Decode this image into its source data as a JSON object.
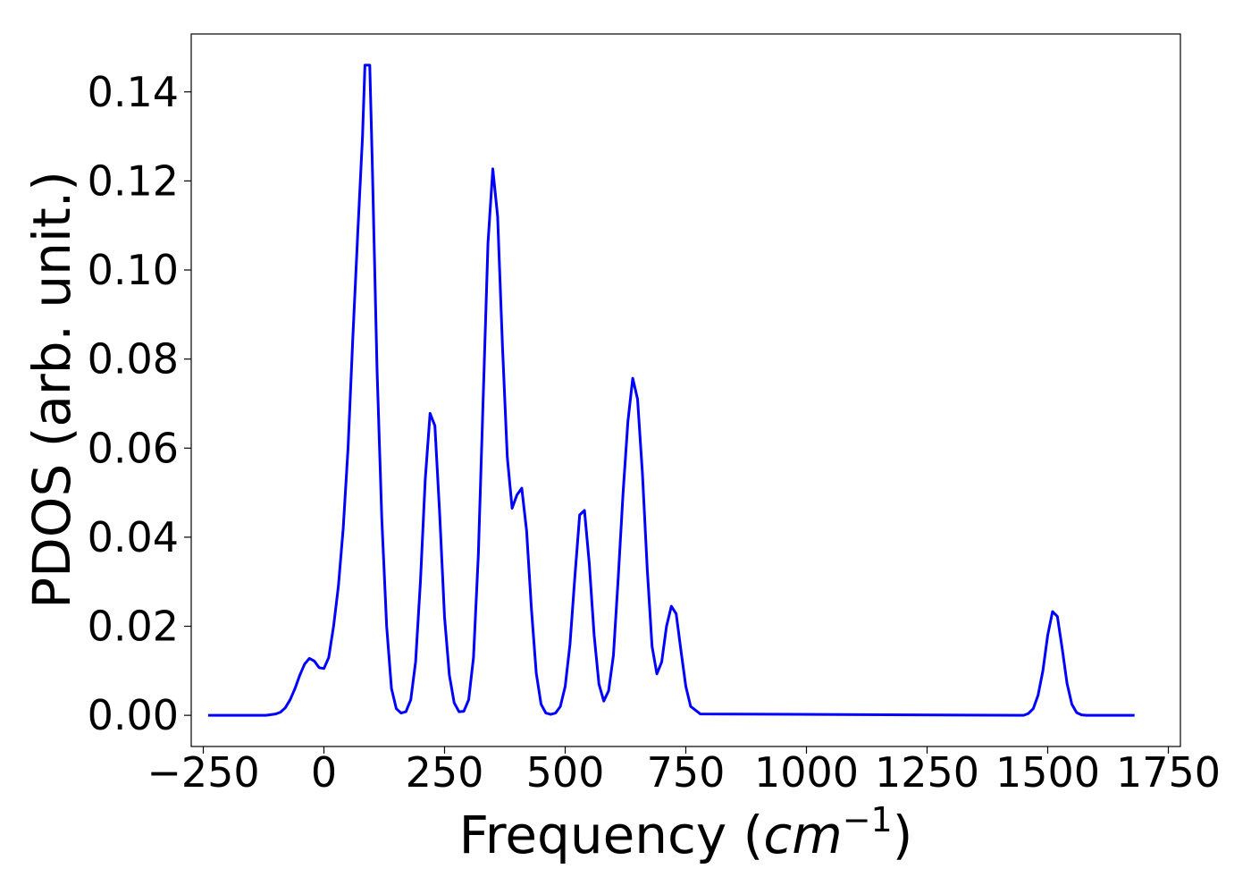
{
  "chart_data": {
    "type": "line",
    "title": "",
    "xlabel_main": "Frequency (",
    "xlabel_unit": "cm",
    "xlabel_sup": "−1",
    "xlabel_tail": ")",
    "ylabel": "PDOS (arb. unit.)",
    "xlim": [
      -275,
      1775
    ],
    "ylim": [
      -0.007,
      0.153
    ],
    "xticks": [
      -250,
      0,
      250,
      500,
      750,
      1000,
      1250,
      1500,
      1750
    ],
    "xtick_labels": [
      "−250",
      "0",
      "250",
      "500",
      "750",
      "1000",
      "1250",
      "1500",
      "1750"
    ],
    "yticks": [
      0.0,
      0.02,
      0.04,
      0.06,
      0.08,
      0.1,
      0.12,
      0.14
    ],
    "ytick_labels": [
      "0.00",
      "0.02",
      "0.04",
      "0.06",
      "0.08",
      "0.10",
      "0.12",
      "0.14"
    ],
    "grid": false,
    "series": [
      {
        "color": "#0000ff",
        "x": [
          -240,
          -120,
          -100,
          -90,
          -80,
          -70,
          -60,
          -50,
          -40,
          -30,
          -20,
          -10,
          0,
          10,
          20,
          30,
          40,
          50,
          60,
          70,
          80,
          85,
          90,
          95,
          100,
          110,
          120,
          130,
          140,
          150,
          160,
          170,
          180,
          190,
          200,
          210,
          220,
          230,
          240,
          250,
          260,
          270,
          280,
          290,
          300,
          310,
          320,
          330,
          340,
          350,
          360,
          370,
          380,
          390,
          400,
          410,
          420,
          430,
          440,
          450,
          460,
          470,
          480,
          490,
          500,
          510,
          520,
          530,
          540,
          550,
          560,
          570,
          580,
          590,
          600,
          610,
          620,
          630,
          640,
          650,
          660,
          670,
          680,
          690,
          700,
          710,
          720,
          730,
          740,
          750,
          760,
          780,
          1450,
          1460,
          1470,
          1480,
          1490,
          1500,
          1510,
          1520,
          1530,
          1540,
          1550,
          1560,
          1570,
          1580,
          1680
        ],
        "y": [
          0,
          0,
          0.0003,
          0.0007,
          0.0017,
          0.0035,
          0.006,
          0.009,
          0.0115,
          0.0128,
          0.0122,
          0.0107,
          0.0105,
          0.013,
          0.02,
          0.029,
          0.042,
          0.06,
          0.085,
          0.108,
          0.13,
          0.146,
          0.146,
          0.146,
          0.125,
          0.078,
          0.044,
          0.02,
          0.006,
          0.0015,
          0.0005,
          0.0008,
          0.0035,
          0.012,
          0.03,
          0.053,
          0.0678,
          0.065,
          0.045,
          0.022,
          0.009,
          0.0028,
          0.0008,
          0.0009,
          0.0035,
          0.013,
          0.036,
          0.071,
          0.106,
          0.1227,
          0.112,
          0.083,
          0.058,
          0.0465,
          0.0495,
          0.051,
          0.0415,
          0.024,
          0.0095,
          0.0025,
          0.0005,
          0.0002,
          0.0005,
          0.002,
          0.0065,
          0.016,
          0.031,
          0.045,
          0.046,
          0.034,
          0.018,
          0.007,
          0.0032,
          0.0055,
          0.0135,
          0.031,
          0.05,
          0.066,
          0.0757,
          0.071,
          0.0545,
          0.033,
          0.0155,
          0.0093,
          0.012,
          0.02,
          0.0245,
          0.0228,
          0.0145,
          0.0065,
          0.002,
          0.0003,
          0,
          0.0004,
          0.0015,
          0.0045,
          0.01,
          0.018,
          0.0233,
          0.0222,
          0.015,
          0.0072,
          0.0025,
          0.0006,
          0.0001,
          0,
          0
        ]
      }
    ]
  }
}
